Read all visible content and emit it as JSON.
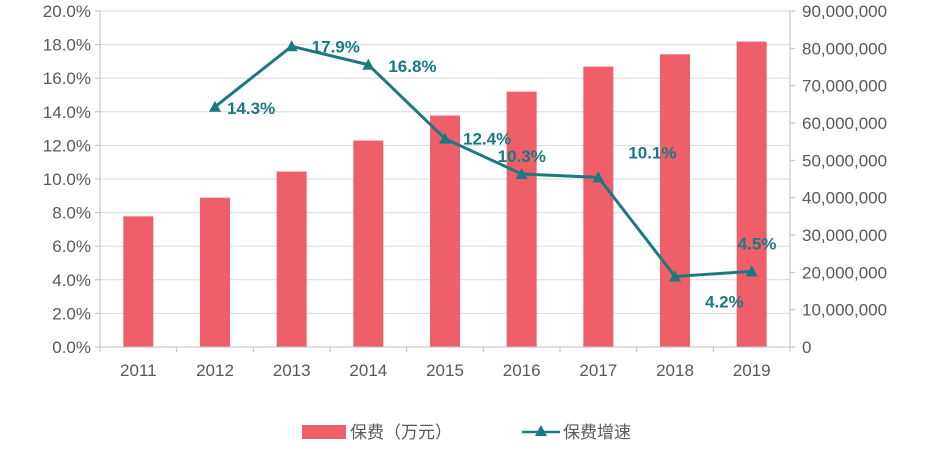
{
  "chart_data": {
    "type": "bar",
    "categories": [
      "2011",
      "2012",
      "2013",
      "2014",
      "2015",
      "2016",
      "2017",
      "2018",
      "2019"
    ],
    "series": [
      {
        "name": "保费（万元）",
        "type": "bar",
        "axis": "right",
        "values": [
          35000000,
          40000000,
          47000000,
          55300000,
          62000000,
          68400000,
          75100000,
          78400000,
          81800000
        ]
      },
      {
        "name": "保费增速",
        "type": "line",
        "axis": "left",
        "values": [
          null,
          14.3,
          17.9,
          16.8,
          12.4,
          10.3,
          10.1,
          4.2,
          4.5
        ],
        "labels": [
          "",
          "14.3%",
          "17.9%",
          "16.8%",
          "12.4%",
          "10.3%",
          "10.1%",
          "4.2%",
          "4.5%"
        ]
      }
    ],
    "y_left": {
      "range": [
        0,
        20
      ],
      "ticks": [
        "0.0%",
        "2.0%",
        "4.0%",
        "6.0%",
        "8.0%",
        "10.0%",
        "12.0%",
        "14.0%",
        "16.0%",
        "18.0%",
        "20.0%"
      ]
    },
    "y_right": {
      "range": [
        0,
        90000000
      ],
      "ticks": [
        "0",
        "10,000,000",
        "20,000,000",
        "30,000,000",
        "40,000,000",
        "50,000,000",
        "60,000,000",
        "70,000,000",
        "80,000,000",
        "90,000,000"
      ]
    },
    "grid": true,
    "legend_position": "bottom",
    "colors": {
      "bar": "#ee5f6a",
      "line": "#1a7a80",
      "grid": "#d9d9d9",
      "axis": "#bfbfbf",
      "text": "#595959"
    }
  }
}
